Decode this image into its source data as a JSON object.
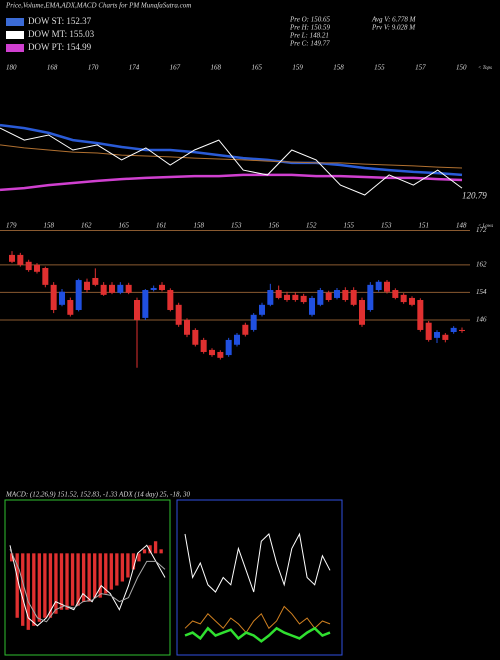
{
  "chart_data": [
    {
      "type": "overlay",
      "title": "Price,Volume,EMA,ADX,MACD Charts for PM MunafaSutra.com",
      "legend": [
        {
          "name": "DOW ST: 152.37",
          "color": "#3b6bd6"
        },
        {
          "name": "DOW MT: 155.03",
          "color": "#ffffff"
        },
        {
          "name": "DOW PT: 154.99",
          "color": "#d040d0"
        }
      ],
      "stats": [
        "Pre O: 150.65",
        "Pre H: 150.59",
        "Pre L: 148.21",
        "Pre C: 149.77",
        "Avg V: 6.778 M",
        "Prv V: 9.028 M"
      ],
      "top_labels": [
        "180",
        "168",
        "170",
        "174",
        "167",
        "168",
        "165",
        "159",
        "158",
        "155",
        "157",
        "150"
      ],
      "side_label": "< Tops",
      "last_value": 120.79,
      "ylim": [
        115,
        180
      ],
      "series": [
        {
          "color": "#2a5bd7",
          "values": [
            151.8,
            150.5,
            148.4,
            145.3,
            144,
            142.3,
            141,
            141,
            140.1,
            138.8,
            137.5,
            136.7,
            135.4,
            135.4,
            134.5,
            133.2,
            132.3,
            131.5,
            131,
            130.2
          ]
        },
        {
          "color": "#b07030",
          "values": [
            143.2,
            141.9,
            141,
            140.1,
            139.7,
            138.8,
            138.4,
            138,
            137.5,
            137.1,
            136.7,
            136.2,
            135.8,
            135.4,
            135.4,
            134.9,
            134.5,
            134.1,
            133.6,
            133.2
          ]
        },
        {
          "color": "#d040d0",
          "values": [
            123.7,
            124.5,
            125.8,
            126.7,
            127.6,
            128.4,
            128.9,
            129.3,
            129.7,
            129.7,
            130.2,
            130.2,
            130.2,
            129.7,
            129.7,
            129.3,
            128.9,
            128.9,
            128.4,
            128
          ]
        },
        {
          "color": "#ffffff",
          "values": [
            150.5,
            145.3,
            147.5,
            141,
            143.2,
            136.7,
            141.9,
            134.5,
            141,
            145.3,
            132.3,
            130.2,
            141,
            136.7,
            125.8,
            121.5,
            130.2,
            125.8,
            132.3,
            124.5
          ]
        }
      ]
    },
    {
      "type": "candlestick",
      "top_labels": [
        "179",
        "158",
        "162",
        "165",
        "161",
        "158",
        "153",
        "156",
        "152",
        "155",
        "153",
        "151",
        "148"
      ],
      "side_label": "< Lows",
      "ylim": [
        99.5,
        176.5
      ],
      "levels": [
        172,
        162,
        154,
        146
      ],
      "up_color": "#2050e0",
      "down_color": "#e03030",
      "level_color": "#8a5a30",
      "open": [
        164.9,
        164.9,
        162.9,
        162,
        161.1,
        156.2,
        150.4,
        151.8,
        148.9,
        157.1,
        158.2,
        156.2,
        156.2,
        153.9,
        156.2,
        151.8,
        146.6,
        154.7,
        156.2,
        154.7,
        150.4,
        146,
        143.1,
        140.2,
        137.3,
        136.7,
        135.8,
        138.8,
        144.6,
        143.1,
        147.5,
        150.4,
        154.7,
        153.3,
        153.3,
        153,
        147.5,
        150.4,
        153.9,
        152.4,
        154.7,
        154.7,
        151.8,
        148.9,
        154.7,
        157.1,
        154.7,
        153.3,
        152.4,
        151.8,
        145.2,
        140.8,
        141.7,
        142.5,
        143.1
      ],
      "close": [
        162.9,
        162,
        160.5,
        160,
        156.2,
        148.9,
        154.2,
        147.5,
        157.6,
        154.7,
        156.2,
        153.3,
        153.9,
        156.2,
        153.9,
        146,
        154.7,
        155.3,
        154.7,
        148.9,
        144.6,
        141.7,
        138.8,
        136.7,
        135.8,
        135,
        140.2,
        141.7,
        141.7,
        147.5,
        150.4,
        154.7,
        152.4,
        151.8,
        151.8,
        151.2,
        152.4,
        154.7,
        151.8,
        154.7,
        151.8,
        150.4,
        144.6,
        156.2,
        157.1,
        154.2,
        152.4,
        151.2,
        150.4,
        143.1,
        140.2,
        142.5,
        140.2,
        143.7,
        142.8
      ],
      "high": [
        166,
        165.5,
        163.5,
        162.5,
        161.5,
        157,
        155,
        152.5,
        158,
        158,
        161,
        157,
        157,
        157,
        156.8,
        152.5,
        155,
        156,
        157,
        155.2,
        151,
        146.5,
        143.6,
        140.8,
        137.8,
        137.2,
        140.8,
        142.2,
        145.2,
        148,
        151,
        156.5,
        156,
        154.2,
        154,
        153.6,
        153,
        155.3,
        154.5,
        155.3,
        155.5,
        155.5,
        152.5,
        157,
        157.6,
        157.6,
        155.2,
        153.8,
        152.9,
        152.3,
        145.7,
        143,
        142.2,
        144.2,
        143.8
      ],
      "low": [
        162.5,
        161.5,
        160,
        159.5,
        155.5,
        148,
        150,
        147,
        148.5,
        154,
        155.8,
        153,
        153.5,
        153.5,
        153.5,
        132.1,
        146,
        154.3,
        154.3,
        148.5,
        144,
        141,
        138.3,
        136.2,
        135.3,
        134.5,
        135.3,
        138.3,
        141.2,
        142.6,
        147,
        150,
        152,
        151.3,
        151.3,
        150.7,
        147,
        150,
        151.3,
        152,
        151.3,
        150,
        144,
        148.4,
        154.2,
        153.7,
        152,
        150.7,
        150,
        142.6,
        139.7,
        139.3,
        139.5,
        142,
        142.3
      ]
    },
    {
      "type": "macd",
      "title": "MACD: (12,26,9) 151.52, 152.83, -1.33 ADX (14 day) 25, -18, 30",
      "ylim": [
        -12,
        6
      ],
      "border": "#30c030",
      "hist_color": "#e03030",
      "histogram": [
        -1,
        -8,
        -9,
        -9.5,
        -9,
        -8.5,
        -8,
        -8,
        -7.5,
        -7,
        -7,
        -6.5,
        -6.5,
        -6,
        -6,
        -5.5,
        -5.5,
        -5,
        -4.5,
        -4,
        -3.5,
        -3,
        -2,
        -1,
        0.5,
        1,
        1.5,
        0.5
      ],
      "series": [
        {
          "color": "#ffffff",
          "values": [
            1,
            -4,
            -8,
            -9,
            -8,
            -6,
            -6.5,
            -7,
            -5,
            -6,
            -4,
            -5,
            -7,
            -4,
            0,
            1,
            -1,
            -3
          ]
        },
        {
          "color": "#aaaaaa",
          "values": [
            0.5,
            -2,
            -6,
            -8,
            -8.5,
            -7,
            -6.5,
            -6.8,
            -6,
            -5.8,
            -5,
            -5.2,
            -6,
            -5.5,
            -3,
            -1,
            -1,
            -2
          ]
        }
      ]
    },
    {
      "type": "adx",
      "ylim": [
        0,
        100
      ],
      "border": "#3050e0",
      "series": [
        {
          "color": "#ffffff",
          "values": [
            80,
            50,
            60,
            45,
            40,
            50,
            45,
            70,
            55,
            40,
            75,
            80,
            60,
            45,
            70,
            80,
            50,
            45,
            65,
            55
          ]
        },
        {
          "color": "#d08020",
          "values": [
            15,
            20,
            18,
            25,
            20,
            15,
            22,
            18,
            12,
            20,
            25,
            15,
            20,
            30,
            25,
            18,
            22,
            15,
            20,
            18
          ]
        },
        {
          "color": "#30e030",
          "values": [
            10,
            12,
            8,
            15,
            10,
            12,
            14,
            8,
            12,
            10,
            6,
            10,
            15,
            12,
            10,
            8,
            12,
            15,
            10,
            12
          ]
        }
      ]
    }
  ]
}
